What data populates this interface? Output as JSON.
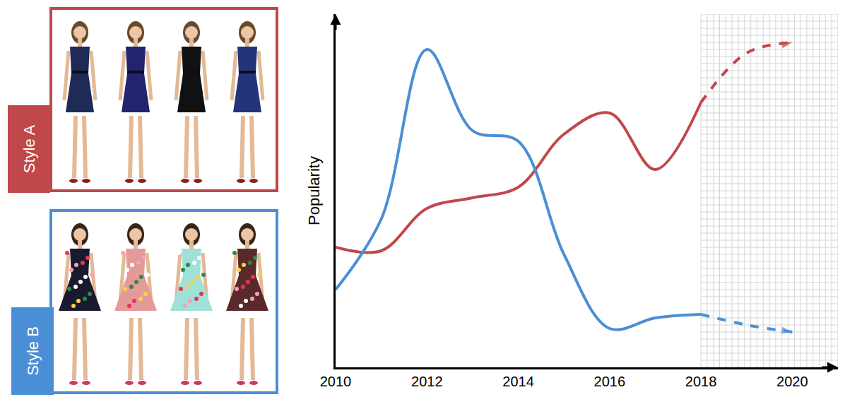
{
  "chart_data": {
    "type": "line",
    "x": [
      2010,
      2011,
      2012,
      2013,
      2014,
      2015,
      2016,
      2017,
      2018,
      2019,
      2020
    ],
    "xlim": [
      2010,
      2021
    ],
    "xticks": [
      2010,
      2012,
      2014,
      2016,
      2018,
      2020
    ],
    "ylim": [
      0,
      100
    ],
    "y_label": "Popularity",
    "tick_labels": "x",
    "grid": false,
    "series": [
      {
        "name": "Style A",
        "color": "#c0474a",
        "line_style": "solid",
        "values": [
          34,
          33,
          45,
          48,
          51,
          66,
          72,
          56,
          75,
          null,
          null
        ]
      },
      {
        "name": "Style A",
        "color": "#c0474a",
        "line_style": "dashed",
        "marker": "arrow",
        "values": [
          null,
          null,
          null,
          null,
          null,
          null,
          null,
          null,
          75,
          89,
          92
        ]
      },
      {
        "name": "Style B",
        "color": "#4a8fd6",
        "line_style": "solid",
        "values": [
          22,
          42,
          90,
          67,
          64,
          32,
          11,
          14,
          15,
          null,
          null
        ]
      },
      {
        "name": "Style B",
        "color": "#4a8fd6",
        "line_style": "dashed",
        "marker": "arrow",
        "values": [
          null,
          null,
          null,
          null,
          null,
          null,
          null,
          null,
          15,
          12,
          10
        ]
      }
    ]
  }
}
